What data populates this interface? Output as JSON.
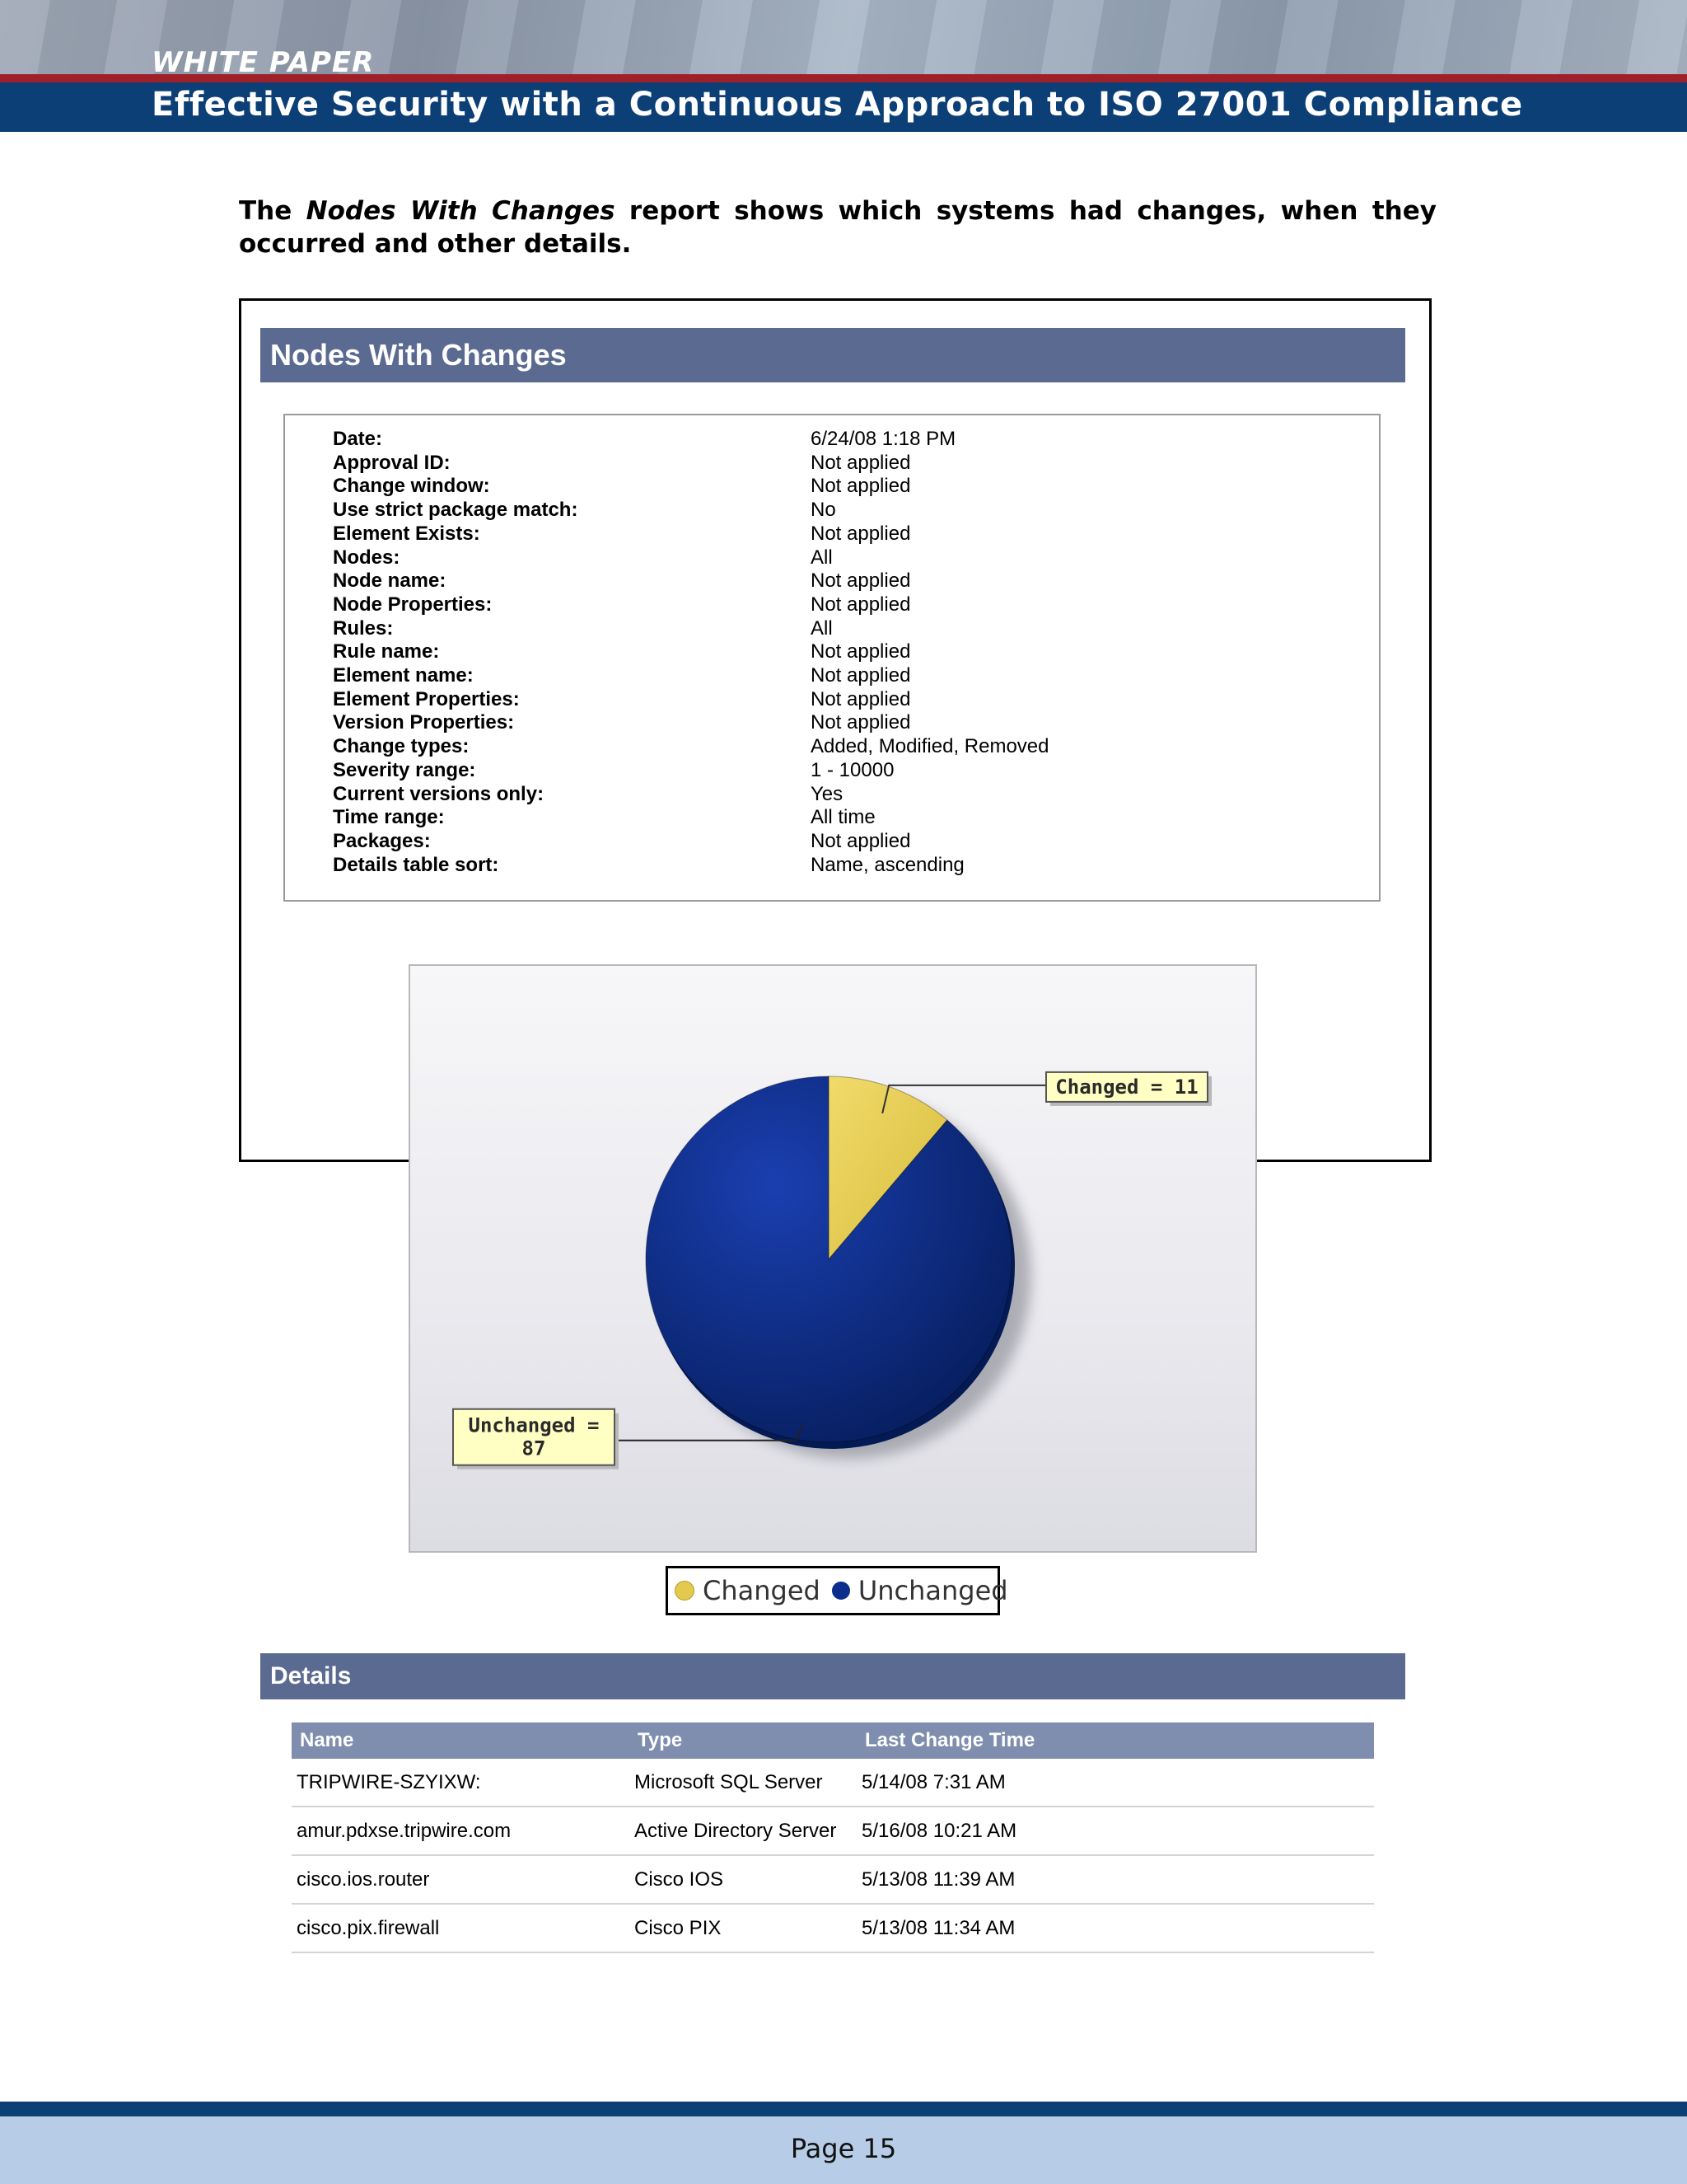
{
  "header": {
    "label": "WHITE PAPER",
    "title": "Effective Security with a Continuous Approach to ISO 27001 Compliance"
  },
  "intro": {
    "prefix": "The ",
    "emphasis": "Nodes With Changes",
    "suffix": " report shows which systems had changes, when they occurred and other details."
  },
  "report": {
    "title": "Nodes With Changes",
    "parameters": [
      {
        "label": "Date:",
        "value": "6/24/08 1:18 PM"
      },
      {
        "label": "Approval ID:",
        "value": "Not applied"
      },
      {
        "label": "Change window:",
        "value": "Not applied"
      },
      {
        "label": "Use strict package match:",
        "value": "No"
      },
      {
        "label": "Element Exists:",
        "value": "Not applied"
      },
      {
        "label": "Nodes:",
        "value": "All"
      },
      {
        "label": "Node name:",
        "value": "Not applied"
      },
      {
        "label": "Node Properties:",
        "value": "Not applied"
      },
      {
        "label": "Rules:",
        "value": "All"
      },
      {
        "label": "Rule name:",
        "value": "Not applied"
      },
      {
        "label": "Element name:",
        "value": "Not applied"
      },
      {
        "label": "Element Properties:",
        "value": "Not applied"
      },
      {
        "label": "Version Properties:",
        "value": "Not applied"
      },
      {
        "label": "Change types:",
        "value": "Added, Modified, Removed"
      },
      {
        "label": "Severity range:",
        "value": "1 - 10000"
      },
      {
        "label": "Current versions only:",
        "value": "Yes"
      },
      {
        "label": "Time range:",
        "value": "All time"
      },
      {
        "label": "Packages:",
        "value": "Not applied"
      },
      {
        "label": "Details table sort:",
        "value": "Name, ascending"
      }
    ],
    "details_title": "Details",
    "table": {
      "headers": [
        "Name",
        "Type",
        "Last Change Time"
      ],
      "rows": [
        [
          "TRIPWIRE-SZYIXW:",
          "Microsoft SQL Server",
          "5/14/08 7:31 AM"
        ],
        [
          "amur.pdxse.tripwire.com",
          "Active Directory Server",
          "5/16/08 10:21 AM"
        ],
        [
          "cisco.ios.router",
          "Cisco IOS",
          "5/13/08 11:39 AM"
        ],
        [
          "cisco.pix.firewall",
          "Cisco PIX",
          "5/13/08 11:34 AM"
        ]
      ]
    }
  },
  "chart_data": {
    "type": "pie",
    "title": "",
    "slices": [
      {
        "label": "Changed",
        "value": 11,
        "color": "#e3c94e",
        "callout": "Changed = 11"
      },
      {
        "label": "Unchanged",
        "value": 87,
        "color": "#0b2d8c",
        "callout_line1": "Unchanged =",
        "callout_line2": "87"
      }
    ],
    "legend": {
      "placement": "bottom",
      "items": [
        "Changed",
        "Unchanged"
      ]
    }
  },
  "footer": {
    "page": "Page 15"
  }
}
